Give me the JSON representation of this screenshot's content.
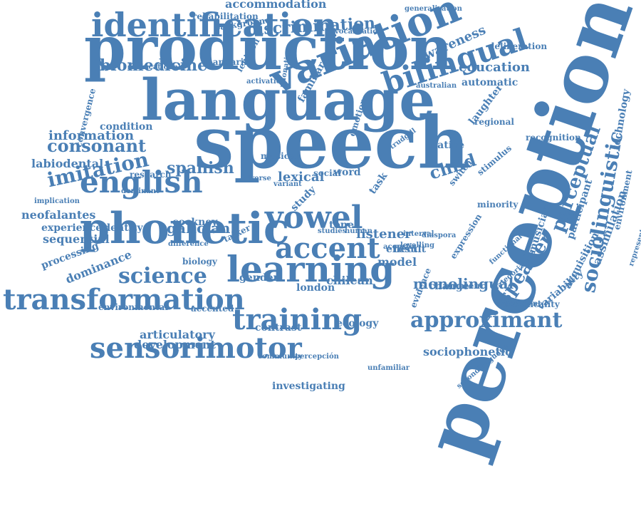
{
  "colors": {
    "text": "#4a7fb5",
    "background": "#ffffff"
  },
  "words": [
    "perception",
    "language",
    "speech",
    "production",
    "phonetic",
    "variation",
    "learning",
    "vowel",
    "accent",
    "identification",
    "bilingual",
    "english",
    "transformation",
    "sensorimotor",
    "training",
    "approximant",
    "science",
    "sociolinguistic",
    "perceptual",
    "speaker",
    "child",
    "imitation",
    "consonant",
    "information",
    "biomedicine",
    "spanish",
    "galician",
    "monolingual",
    "discrimination",
    "accommodation",
    "education",
    "awareness",
    "automatic",
    "sociophonetic",
    "listener",
    "lexical",
    "assimilation",
    "technology",
    "musician",
    "participant",
    "acquisition",
    "variability",
    "environment",
    "representation",
    "recognition",
    "laughter",
    "native",
    "regional",
    "model",
    "result",
    "chilean",
    "london",
    "gender",
    "biology",
    "development",
    "articulatory",
    "investigating",
    "community",
    "percepción",
    "unfamiliar",
    "contrast",
    "ecology",
    "change",
    "amateur",
    "indexicality",
    "evidence",
    "dominance",
    "environmental",
    "accented",
    "sequential",
    "experience",
    "identity",
    "neofalantes",
    "cockney",
    "labiodental",
    "research",
    "implication",
    "processing",
    "difference",
    "talker",
    "tone",
    "effect",
    "studies",
    "human",
    "condition",
    "background",
    "rehabilitation",
    "generalization",
    "mandarin",
    "educational",
    "lenition",
    "activation",
    "convergence",
    "vocalization",
    "deliberation",
    "switch",
    "stimulus",
    "minority",
    "expression",
    "functional",
    "categorize",
    "experiment",
    "interval",
    "acoustic",
    "dominant",
    "musical",
    "word",
    "social",
    "adverse",
    "variant",
    "familiar",
    "phonation",
    "study",
    "task",
    "australian",
    "emotion",
    "trudgill",
    "levelling",
    "diaspora",
    "secondlanguage"
  ]
}
